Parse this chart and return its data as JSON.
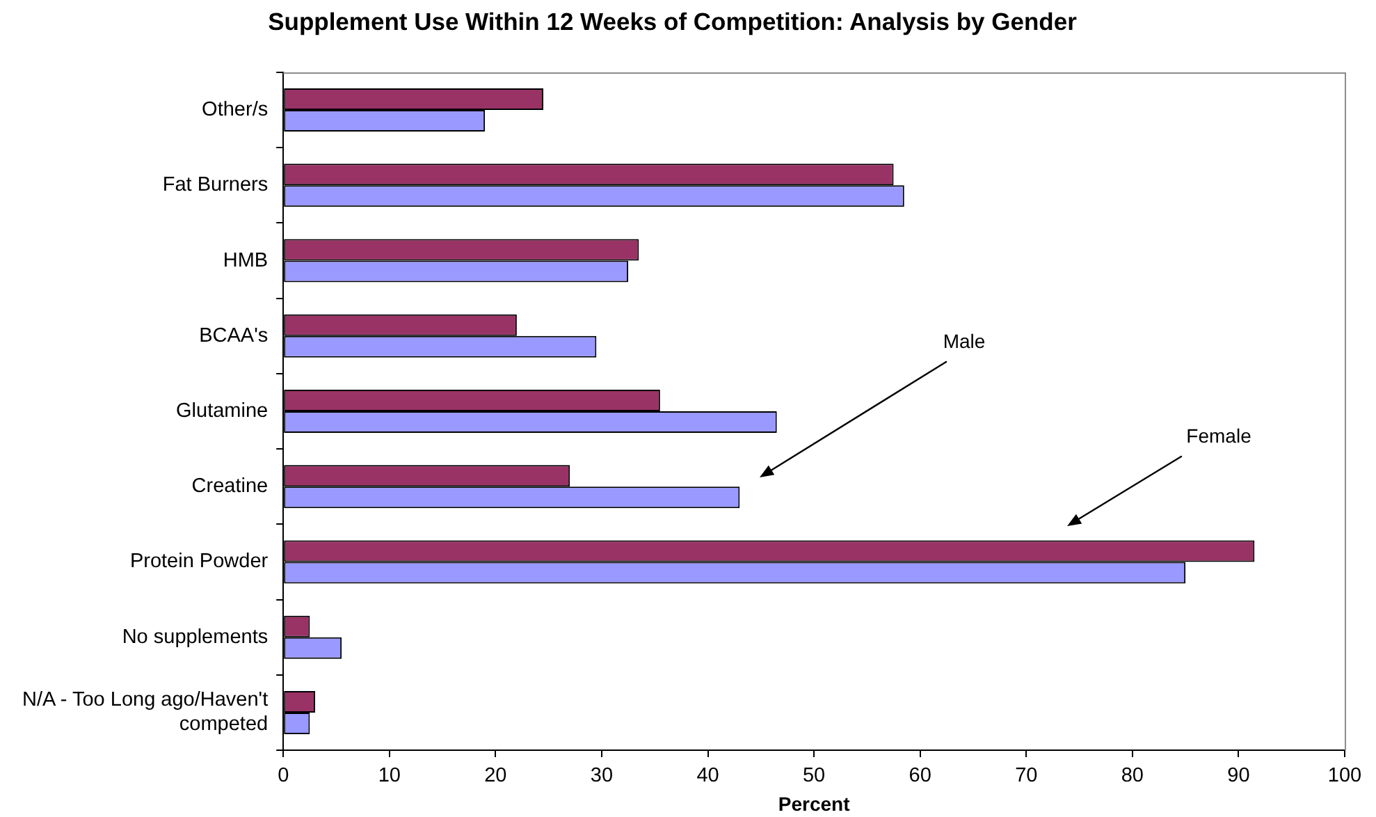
{
  "chart_data": {
    "type": "bar",
    "orientation": "horizontal",
    "title": "Supplement Use Within 12 Weeks of Competition: Analysis by Gender",
    "xlabel": "Percent",
    "categories": [
      "Other/s",
      "Fat Burners",
      "HMB",
      "BCAA's",
      "Glutamine",
      "Creatine",
      "Protein Powder",
      "No supplements",
      "N/A - Too Long ago/Haven't competed"
    ],
    "series": [
      {
        "color": "#993366",
        "values": [
          24.5,
          57.5,
          33.5,
          22,
          35.5,
          27,
          91.5,
          2.5,
          3
        ]
      },
      {
        "color": "#9999ff",
        "values": [
          19,
          58.5,
          32.5,
          29.5,
          46.5,
          43,
          85,
          5.5,
          2.5
        ]
      }
    ],
    "xlim": [
      0,
      100
    ],
    "xticks": [
      0,
      10,
      20,
      30,
      40,
      50,
      60,
      70,
      80,
      90,
      100
    ],
    "grid": false,
    "legend": false,
    "annotations": [
      "Male",
      "Female"
    ]
  }
}
